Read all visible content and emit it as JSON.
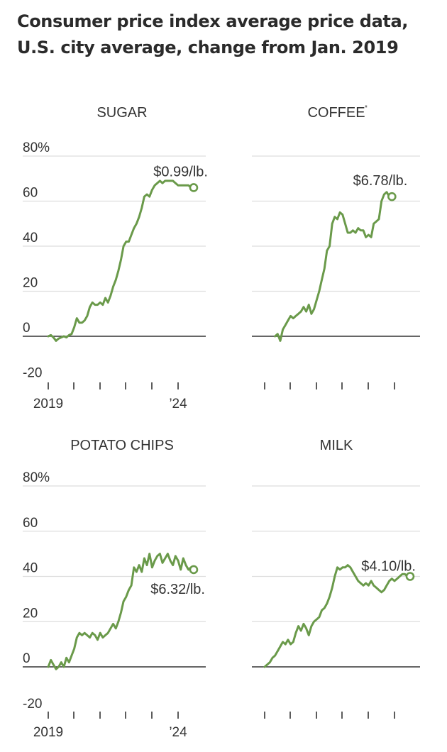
{
  "title_line1": "Consumer price index average price data,",
  "title_line2": "U.S. city average, change from Jan. 2019",
  "colors": {
    "line": "#6a9a4a",
    "grid": "#dddddd",
    "zero": "#333333",
    "text": "#333333"
  },
  "chart_data": [
    {
      "type": "line",
      "title": "SUGAR",
      "ylabels": [
        "80%",
        "60",
        "40",
        "20",
        "0",
        "-20"
      ],
      "yticks": [
        80,
        60,
        40,
        20,
        0,
        -20
      ],
      "ylim": [
        -20,
        80
      ],
      "xlim": [
        2019,
        2024.8
      ],
      "xtick_years": [
        2019,
        2020,
        2021,
        2022,
        2023,
        2024
      ],
      "xtick_labels": [
        "2019",
        "",
        "",
        "",
        "",
        "’24"
      ],
      "end_label": "$0.99/lb.",
      "x": [
        2019.0,
        2019.1,
        2019.2,
        2019.3,
        2019.4,
        2019.5,
        2019.6,
        2019.7,
        2019.8,
        2019.9,
        2020.0,
        2020.1,
        2020.2,
        2020.3,
        2020.4,
        2020.5,
        2020.6,
        2020.7,
        2020.8,
        2020.9,
        2021.0,
        2021.1,
        2021.2,
        2021.3,
        2021.4,
        2021.5,
        2021.6,
        2021.7,
        2021.8,
        2021.9,
        2022.0,
        2022.1,
        2022.2,
        2022.3,
        2022.4,
        2022.5,
        2022.6,
        2022.7,
        2022.8,
        2022.9,
        2023.0,
        2023.1,
        2023.2,
        2023.3,
        2023.4,
        2023.5,
        2023.6,
        2023.7,
        2023.8,
        2023.9,
        2024.0,
        2024.1,
        2024.2,
        2024.3,
        2024.4,
        2024.5,
        2024.6
      ],
      "values": [
        0,
        0.5,
        -0.5,
        -2,
        -1,
        -0.5,
        0,
        -0.5,
        0.5,
        1,
        4,
        8,
        6,
        6,
        7,
        9,
        13,
        15,
        14,
        14,
        15,
        14,
        17,
        15,
        18,
        22,
        25,
        29,
        34,
        40,
        42,
        42,
        45,
        48,
        50,
        53,
        57,
        62,
        63,
        62,
        65,
        67,
        68,
        69,
        68,
        69,
        69,
        69,
        69,
        68,
        67,
        67,
        67,
        67,
        67,
        66,
        66
      ]
    },
    {
      "type": "line",
      "title": "COFFEE",
      "title_mark": "*",
      "ylabels": [],
      "yticks": [
        80,
        60,
        40,
        20,
        0,
        -20
      ],
      "ylim": [
        -20,
        80
      ],
      "xlim": [
        2019,
        2024.8
      ],
      "xtick_years": [
        2019,
        2020,
        2021,
        2022,
        2023,
        2024
      ],
      "xtick_labels": [
        "",
        "",
        "",
        "",
        "",
        ""
      ],
      "end_label": "$6.78/lb.",
      "x": [
        2019.4,
        2019.5,
        2019.6,
        2019.7,
        2019.8,
        2019.9,
        2020.0,
        2020.1,
        2020.2,
        2020.3,
        2020.4,
        2020.5,
        2020.6,
        2020.7,
        2020.8,
        2020.9,
        2021.0,
        2021.1,
        2021.2,
        2021.3,
        2021.4,
        2021.5,
        2021.6,
        2021.7,
        2021.8,
        2021.9,
        2022.0,
        2022.1,
        2022.2,
        2022.3,
        2022.4,
        2022.5,
        2022.6,
        2022.7,
        2022.8,
        2022.9,
        2023.0,
        2023.1,
        2023.2,
        2023.3,
        2023.4,
        2023.5,
        2023.6,
        2023.7,
        2023.8,
        2023.9
      ],
      "values": [
        0,
        1,
        -2,
        3,
        5,
        7,
        9,
        8,
        9,
        10,
        11,
        13,
        11,
        14,
        10,
        12,
        16,
        20,
        25,
        30,
        38,
        40,
        50,
        53,
        52,
        55,
        54,
        50,
        46,
        46,
        47,
        46,
        48,
        47,
        47,
        44,
        45,
        44,
        50,
        51,
        52,
        60,
        63,
        64,
        62,
        62
      ]
    },
    {
      "type": "line",
      "title": "POTATO CHIPS",
      "ylabels": [
        "80%",
        "60",
        "40",
        "20",
        "0",
        "-20"
      ],
      "yticks": [
        80,
        60,
        40,
        20,
        0,
        -20
      ],
      "ylim": [
        -20,
        80
      ],
      "xlim": [
        2019,
        2024.8
      ],
      "xtick_years": [
        2019,
        2020,
        2021,
        2022,
        2023,
        2024
      ],
      "xtick_labels": [
        "2019",
        "",
        "",
        "",
        "",
        "’24"
      ],
      "end_label": "$6.32/lb.",
      "x": [
        2019.0,
        2019.1,
        2019.2,
        2019.3,
        2019.4,
        2019.5,
        2019.6,
        2019.7,
        2019.8,
        2019.9,
        2020.0,
        2020.1,
        2020.2,
        2020.3,
        2020.4,
        2020.5,
        2020.6,
        2020.7,
        2020.8,
        2020.9,
        2021.0,
        2021.1,
        2021.2,
        2021.3,
        2021.4,
        2021.5,
        2021.6,
        2021.7,
        2021.8,
        2021.9,
        2022.0,
        2022.1,
        2022.2,
        2022.3,
        2022.4,
        2022.5,
        2022.6,
        2022.7,
        2022.8,
        2022.9,
        2023.0,
        2023.1,
        2023.2,
        2023.3,
        2023.4,
        2023.5,
        2023.6,
        2023.7,
        2023.8,
        2023.9,
        2024.0,
        2024.1,
        2024.2,
        2024.3,
        2024.4,
        2024.5,
        2024.6
      ],
      "values": [
        0,
        3,
        1,
        -1,
        0,
        2,
        0,
        4,
        2,
        5,
        8,
        13,
        15,
        14,
        15,
        14,
        13,
        15,
        14,
        12,
        15,
        13,
        14,
        15,
        17,
        19,
        17,
        20,
        24,
        29,
        31,
        34,
        36,
        44,
        42,
        45,
        42,
        48,
        45,
        50,
        44,
        47,
        49,
        50,
        46,
        48,
        50,
        47,
        45,
        49,
        47,
        43,
        48,
        45,
        43,
        44,
        43
      ]
    },
    {
      "type": "line",
      "title": "MILK",
      "ylabels": [],
      "yticks": [
        80,
        60,
        40,
        20,
        0,
        -20
      ],
      "ylim": [
        -20,
        80
      ],
      "xlim": [
        2019,
        2024.8
      ],
      "xtick_years": [
        2019,
        2020,
        2021,
        2022,
        2023,
        2024
      ],
      "xtick_labels": [
        "",
        "",
        "",
        "",
        "",
        ""
      ],
      "end_label": "$4.10/lb.",
      "x": [
        2019.0,
        2019.1,
        2019.2,
        2019.3,
        2019.4,
        2019.5,
        2019.6,
        2019.7,
        2019.8,
        2019.9,
        2020.0,
        2020.1,
        2020.2,
        2020.3,
        2020.4,
        2020.5,
        2020.6,
        2020.7,
        2020.8,
        2020.9,
        2021.0,
        2021.1,
        2021.2,
        2021.3,
        2021.4,
        2021.5,
        2021.6,
        2021.7,
        2021.8,
        2021.9,
        2022.0,
        2022.1,
        2022.2,
        2022.3,
        2022.4,
        2022.5,
        2022.6,
        2022.7,
        2022.8,
        2022.9,
        2023.0,
        2023.1,
        2023.2,
        2023.3,
        2023.4,
        2023.5,
        2023.6,
        2023.7,
        2023.8,
        2023.9,
        2024.0,
        2024.1,
        2024.2,
        2024.3,
        2024.4,
        2024.5,
        2024.6
      ],
      "values": [
        0,
        1,
        2,
        4,
        5,
        7,
        9,
        11,
        10,
        12,
        10,
        11,
        15,
        18,
        16,
        19,
        17,
        14,
        18,
        20,
        21,
        22,
        25,
        26,
        28,
        31,
        35,
        40,
        44,
        43,
        44,
        44,
        45,
        44,
        42,
        40,
        38,
        37,
        36,
        37,
        36,
        38,
        36,
        35,
        34,
        33,
        34,
        36,
        38,
        39,
        38,
        39,
        40,
        41,
        41,
        40,
        40
      ]
    }
  ]
}
